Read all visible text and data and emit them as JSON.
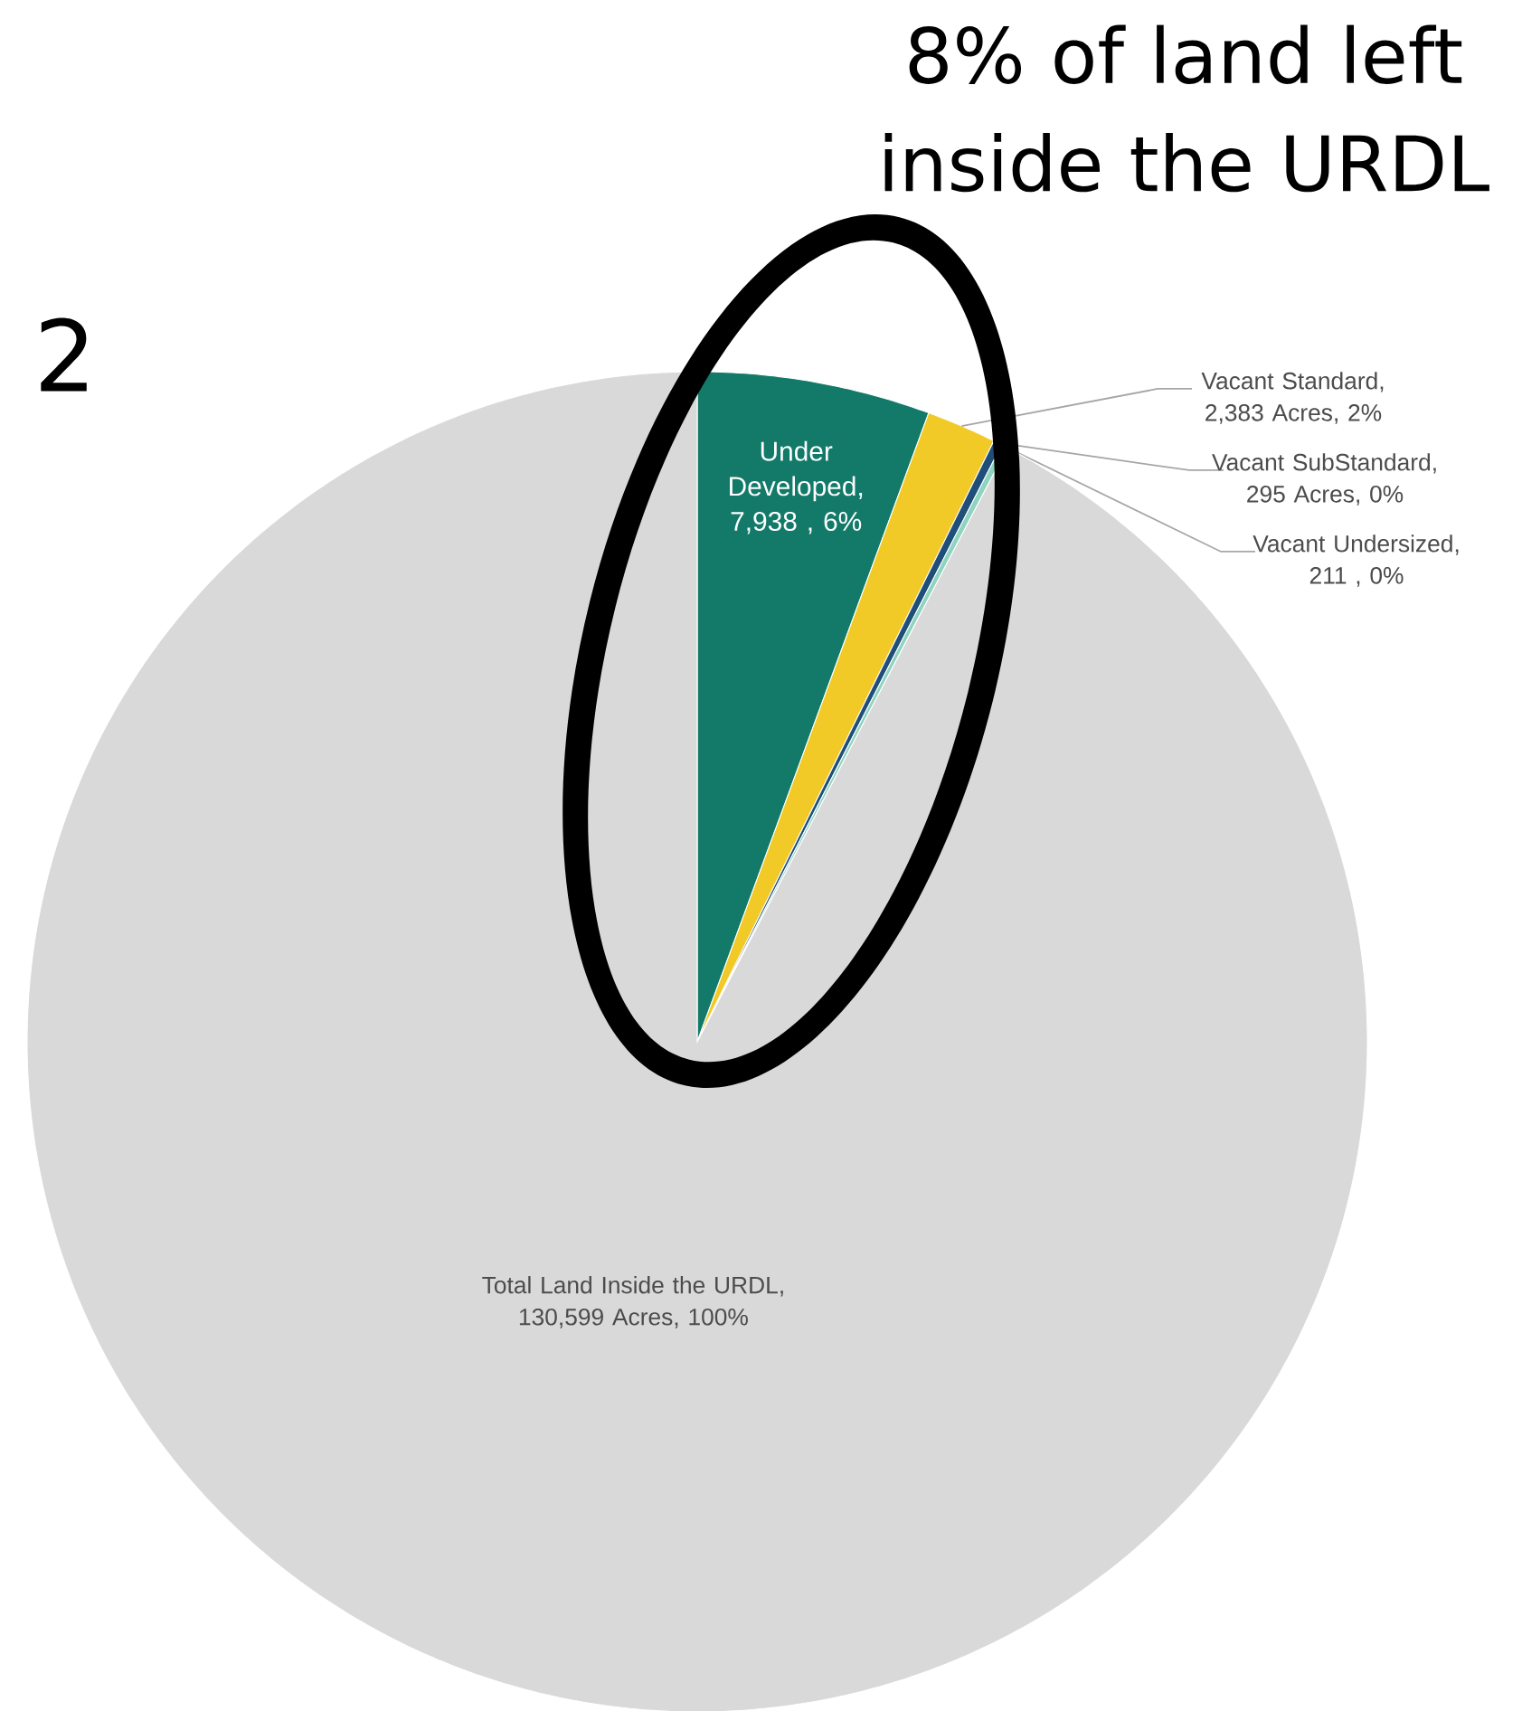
{
  "chart_data": {
    "type": "pie",
    "categories": [
      "Under Developed",
      "Vacant Standard",
      "Vacant SubStandard",
      "Vacant Undersized",
      "Total Land Inside the URDL"
    ],
    "values": [
      7938,
      2383,
      295,
      211,
      130599
    ],
    "value_labels": [
      ", 7,938 , 6%",
      ", 2,383 Acres, 2%",
      ", 295 Acres, 0%",
      ", 211 , 0%",
      ", 130,599 Acres, 100%"
    ],
    "colors": [
      "#137a6a",
      "#f2ca27",
      "#1f4e79",
      "#8fd3c1",
      "#d9d9d9"
    ],
    "annotations": [
      "8% of land left inside the URDL",
      "2"
    ]
  }
}
